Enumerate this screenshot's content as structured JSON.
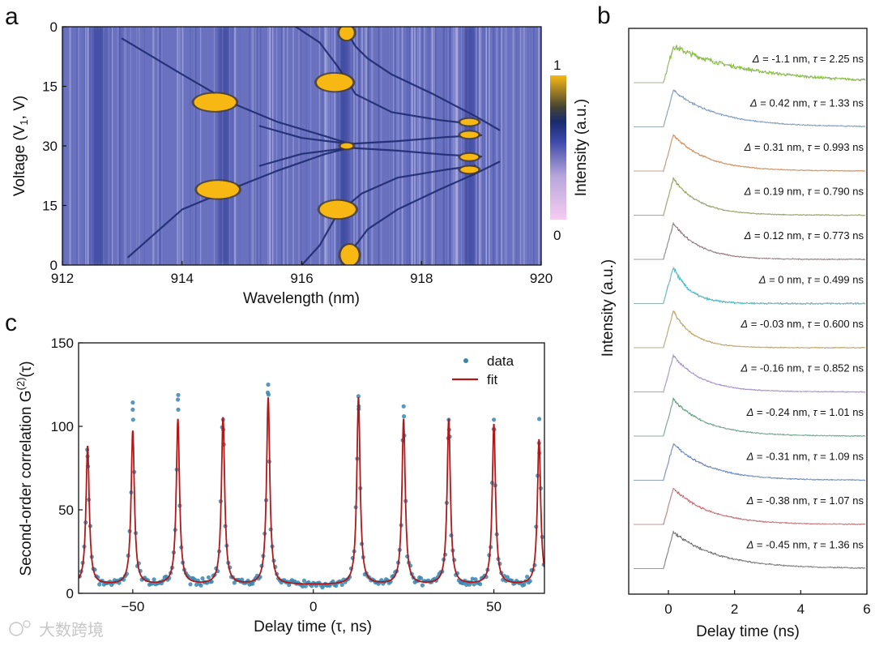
{
  "panels": {
    "a": "a",
    "b": "b",
    "c": "c"
  },
  "watermark": "大数跨境",
  "chart_data": [
    {
      "type": "heatmap",
      "panel": "a",
      "xlabel": "Wavelength (nm)",
      "ylabel": "Voltage (V",
      "ylabel_sub": "1",
      "ylabel_tail": ", V)",
      "xlim": [
        912,
        920
      ],
      "xticks": [
        912,
        914,
        916,
        918,
        920
      ],
      "yticks_labels": [
        "0",
        "15",
        "30",
        "15",
        "0"
      ],
      "colorbar": {
        "label": "Intensity (a.u.)",
        "max_label": "1",
        "min_label": "0",
        "colors": [
          "#f6ccf0",
          "#b7a6dc",
          "#3a46a8",
          "#1a2a6e",
          "#444433",
          "#f7b814"
        ]
      },
      "background_color": "#6a72c0",
      "lines": [
        {
          "name": "mode-914-upper",
          "points": [
            [
              913.0,
              3
            ],
            [
              914.0,
              12
            ],
            [
              914.8,
              19
            ],
            [
              915.6,
              24
            ],
            [
              916.4,
              27.6
            ],
            [
              916.8,
              29.5
            ]
          ],
          "bright": [
            [
              914.2,
              914.9
            ],
            [
              19
            ]
          ]
        },
        {
          "name": "mode-914-lower",
          "points": [
            [
              913.1,
              58
            ],
            [
              914.0,
              46
            ],
            [
              914.8,
              41
            ],
            [
              915.6,
              36.2
            ],
            [
              916.4,
              32
            ],
            [
              916.8,
              30.5
            ]
          ],
          "bright": [
            [
              914.3,
              914.8
            ],
            [
              41
            ]
          ]
        },
        {
          "name": "mode-916-upper-a",
          "points": [
            [
              915.9,
              0
            ],
            [
              916.3,
              4
            ],
            [
              916.6,
              10
            ],
            [
              916.9,
              17
            ],
            [
              917.5,
              21.5
            ],
            [
              918.3,
              23.5
            ],
            [
              918.9,
              24.5
            ]
          ]
        },
        {
          "name": "mode-916-upper-b",
          "points": [
            [
              916.7,
              0
            ],
            [
              916.9,
              5
            ],
            [
              917.1,
              8
            ],
            [
              917.5,
              12
            ],
            [
              918.2,
              17
            ],
            [
              918.9,
              22.5
            ],
            [
              919.3,
              26
            ]
          ]
        },
        {
          "name": "mode-916-lower-a",
          "points": [
            [
              916.0,
              60
            ],
            [
              916.3,
              55
            ],
            [
              916.6,
              47
            ],
            [
              917.0,
              42
            ],
            [
              917.6,
              38
            ],
            [
              918.4,
              36
            ],
            [
              918.9,
              35
            ]
          ]
        },
        {
          "name": "mode-916-lower-b",
          "points": [
            [
              916.8,
              60
            ],
            [
              916.9,
              55
            ],
            [
              917.1,
              51
            ],
            [
              917.6,
              46
            ],
            [
              918.3,
              41
            ],
            [
              918.9,
              37
            ],
            [
              919.3,
              34
            ]
          ]
        },
        {
          "name": "center-a",
          "points": [
            [
              915.3,
              25
            ],
            [
              916.0,
              28
            ],
            [
              916.8,
              29.5
            ],
            [
              917.6,
              28.8
            ],
            [
              918.4,
              27.8
            ],
            [
              919.0,
              27.3
            ]
          ]
        },
        {
          "name": "center-b",
          "points": [
            [
              915.3,
              35
            ],
            [
              916.0,
              32
            ],
            [
              916.8,
              30.5
            ],
            [
              917.6,
              31.2
            ],
            [
              918.4,
              32.2
            ],
            [
              919.0,
              32.7
            ]
          ]
        }
      ],
      "hotspots": [
        {
          "x": 914.55,
          "y": 19,
          "rx": 0.35,
          "ry": 2.2
        },
        {
          "x": 914.6,
          "y": 41,
          "rx": 0.35,
          "ry": 2.2
        },
        {
          "x": 916.55,
          "y": 14,
          "rx": 0.3,
          "ry": 2.2
        },
        {
          "x": 916.6,
          "y": 46,
          "rx": 0.3,
          "ry": 2.2
        },
        {
          "x": 916.75,
          "y": 1.5,
          "rx": 0.12,
          "ry": 1.8
        },
        {
          "x": 916.8,
          "y": 57.5,
          "rx": 0.15,
          "ry": 2.6
        },
        {
          "x": 916.75,
          "y": 30,
          "rx": 0.1,
          "ry": 0.7
        },
        {
          "x": 918.8,
          "y": 24,
          "rx": 0.15,
          "ry": 0.8
        },
        {
          "x": 918.8,
          "y": 27.2,
          "rx": 0.15,
          "ry": 0.8
        },
        {
          "x": 918.8,
          "y": 32.8,
          "rx": 0.15,
          "ry": 0.8
        },
        {
          "x": 918.8,
          "y": 36,
          "rx": 0.15,
          "ry": 0.8
        }
      ],
      "dark_bands": [
        912.6,
        914.7,
        916.7,
        918.8
      ]
    },
    {
      "type": "line",
      "panel": "b",
      "xlabel": "Delay time (ns)",
      "ylabel": "Intensity (a.u.)",
      "xlim": [
        -1.2,
        6
      ],
      "xticks": [
        0,
        2,
        4,
        6
      ],
      "series": [
        {
          "delta": "-1.1 nm",
          "tau_value": "2.25 ns",
          "tau": 2.25,
          "color": "#7ac21e",
          "noise": 0.12
        },
        {
          "delta": "0.42 nm",
          "tau_value": "1.33 ns",
          "tau": 1.33,
          "color": "#5b8fd0",
          "noise": 0.05
        },
        {
          "delta": "0.31 nm",
          "tau_value": "0.993 ns",
          "tau": 0.993,
          "color": "#f07820",
          "noise": 0.05
        },
        {
          "delta": "0.19 nm",
          "tau_value": "0.790 ns",
          "tau": 0.79,
          "color": "#7d9a1e",
          "noise": 0.05
        },
        {
          "delta": "0.12 nm",
          "tau_value": "0.773 ns",
          "tau": 0.773,
          "color": "#7a4a50",
          "noise": 0.05
        },
        {
          "delta": "0 nm",
          "tau_value": "0.499 ns",
          "tau": 0.499,
          "color": "#1fc0d0",
          "noise": 0.1
        },
        {
          "delta": "-0.03 nm",
          "tau_value": "0.600 ns",
          "tau": 0.6,
          "color": "#d0a020",
          "noise": 0.05
        },
        {
          "delta": "-0.16 nm",
          "tau_value": "0.852 ns",
          "tau": 0.852,
          "color": "#a47ae0",
          "noise": 0.05
        },
        {
          "delta": "-0.24 nm",
          "tau_value": "1.01 ns",
          "tau": 1.01,
          "color": "#2ea060",
          "noise": 0.05
        },
        {
          "delta": "-0.31 nm",
          "tau_value": "1.09 ns",
          "tau": 1.09,
          "color": "#2a6ad0",
          "noise": 0.05
        },
        {
          "delta": "-0.38 nm",
          "tau_value": "1.07 ns",
          "tau": 1.07,
          "color": "#e03840",
          "noise": 0.05
        },
        {
          "delta": "-0.45 nm",
          "tau_value": "1.36 ns",
          "tau": 1.36,
          "color": "#444444",
          "noise": 0.05
        }
      ]
    },
    {
      "type": "scatter",
      "panel": "c",
      "xlabel": "Delay time (τ, ns)",
      "ylabel": "Second-order correlation G",
      "ylabel_sup": "(2)",
      "ylabel_tail": "(τ)",
      "xlim": [
        -65,
        64
      ],
      "ylim": [
        0,
        150
      ],
      "xticks": [
        -50,
        0,
        50
      ],
      "yticks": [
        0,
        50,
        100,
        150
      ],
      "legend": {
        "data": "data",
        "fit": "fit",
        "placement": "top-right"
      },
      "data_color": "#3a86b0",
      "fit_color": "#b21818",
      "baseline": 5,
      "peaks": [
        {
          "x": -62.5,
          "fit": 88,
          "data_max": 82
        },
        {
          "x": -50,
          "fit": 97,
          "data_max": 110
        },
        {
          "x": -37.5,
          "fit": 104,
          "data_max": 116
        },
        {
          "x": -25,
          "fit": 105,
          "data_max": 104
        },
        {
          "x": -12.5,
          "fit": 117,
          "data_max": 125
        },
        {
          "x": 12.5,
          "fit": 117,
          "data_max": 118
        },
        {
          "x": 25,
          "fit": 104,
          "data_max": 112
        },
        {
          "x": 37.5,
          "fit": 104,
          "data_max": 104
        },
        {
          "x": 50,
          "fit": 101,
          "data_max": 104
        },
        {
          "x": 62.5,
          "fit": 92,
          "data_max": 90
        }
      ]
    }
  ]
}
